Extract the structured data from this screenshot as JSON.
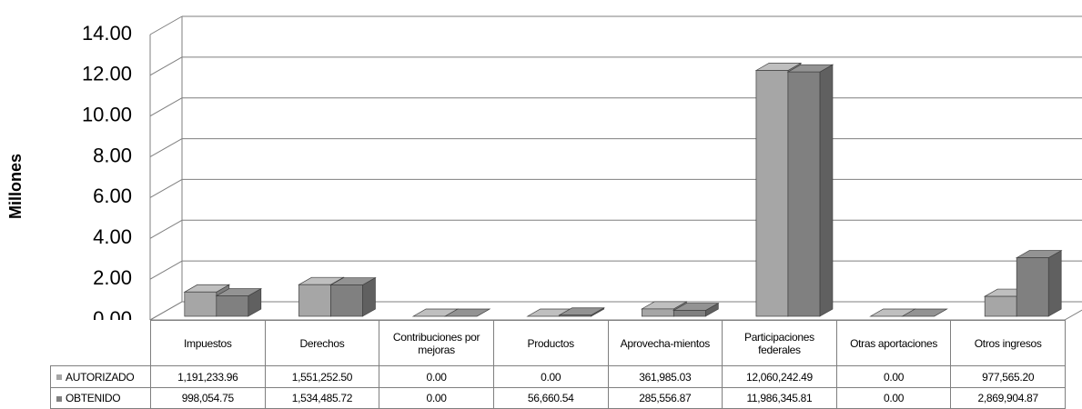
{
  "chart_data": {
    "type": "bar3d",
    "y_axis_label": "Millones",
    "categories": [
      "Impuestos",
      "Derechos",
      "Contribuciones por mejoras",
      "Productos",
      "Aprovecha-mientos",
      "Participaciones federales",
      "Otras aportaciones",
      "Otros ingresos"
    ],
    "series": [
      {
        "name": "AUTORIZADO",
        "color": "#a6a6a6",
        "values": [
          1.19123396,
          1.5512525,
          0,
          0,
          0.36198503,
          12.06024249,
          0,
          0.9775652
        ],
        "value_labels": [
          "1,191,233.96",
          "1,551,252.50",
          "0.00",
          "0.00",
          "361,985.03",
          "12,060,242.49",
          "0.00",
          "977,565.20"
        ]
      },
      {
        "name": "OBTENIDO",
        "color": "#808080",
        "values": [
          0.99805475,
          1.53448572,
          0,
          0.05666054,
          0.28555687,
          11.98634581,
          0,
          2.86990487
        ],
        "value_labels": [
          "998,054.75",
          "1,534,485.72",
          "0.00",
          "56,660.54",
          "285,556.87",
          "11,986,345.81",
          "0.00",
          "2,869,904.87"
        ]
      }
    ],
    "ylim": [
      0,
      14
    ],
    "yticks": [
      {
        "value": 0,
        "label": "0.00"
      },
      {
        "value": 2,
        "label": "2.00"
      },
      {
        "value": 4,
        "label": "4.00"
      },
      {
        "value": 6,
        "label": "6.00"
      },
      {
        "value": 8,
        "label": "8.00"
      },
      {
        "value": 10,
        "label": "10.00"
      },
      {
        "value": 12,
        "label": "12.00"
      },
      {
        "value": 14,
        "label": "14.00"
      }
    ],
    "grid": true
  }
}
